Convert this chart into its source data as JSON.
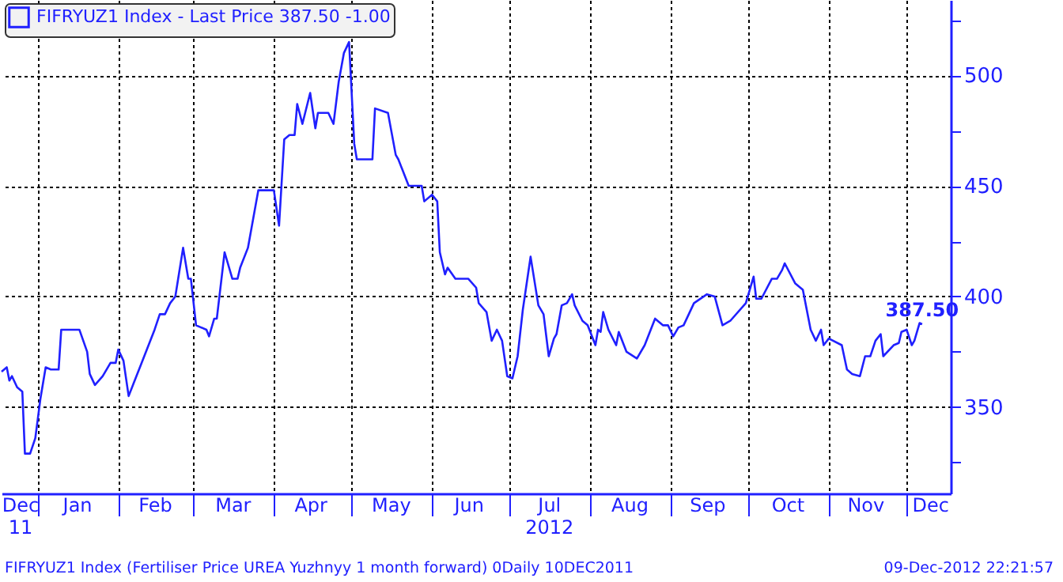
{
  "chart_data": {
    "type": "line",
    "legend": "top left",
    "grid": true,
    "marker": "none",
    "line_style": "solid",
    "x": [
      "2011-12-18",
      "2011-12-20",
      "2011-12-21",
      "2011-12-22",
      "2011-12-24",
      "2011-12-26",
      "2011-12-27",
      "2011-12-29",
      "2011-12-31",
      "2012-01-02",
      "2012-01-04",
      "2012-01-06",
      "2012-01-09",
      "2012-01-10",
      "2012-01-17",
      "2012-01-20",
      "2012-01-21",
      "2012-01-23",
      "2012-01-26",
      "2012-01-29",
      "2012-01-31",
      "2012-02-01",
      "2012-02-03",
      "2012-02-05",
      "2012-02-07",
      "2012-02-10",
      "2012-02-15",
      "2012-02-17",
      "2012-02-19",
      "2012-02-21",
      "2012-02-23",
      "2012-02-26",
      "2012-02-28",
      "2012-02-29",
      "2012-03-02",
      "2012-03-06",
      "2012-03-07",
      "2012-03-09",
      "2012-03-10",
      "2012-03-13",
      "2012-03-16",
      "2012-03-18",
      "2012-03-19",
      "2012-03-22",
      "2012-03-26",
      "2012-03-28",
      "2012-04-01",
      "2012-04-03",
      "2012-04-05",
      "2012-04-07",
      "2012-04-09",
      "2012-04-10",
      "2012-04-12",
      "2012-04-15",
      "2012-04-17",
      "2012-04-18",
      "2012-04-22",
      "2012-04-24",
      "2012-04-26",
      "2012-04-28",
      "2012-04-30",
      "2012-05-02",
      "2012-05-03",
      "2012-05-09",
      "2012-05-10",
      "2012-05-15",
      "2012-05-18",
      "2012-05-19",
      "2012-05-23",
      "2012-05-28",
      "2012-05-29",
      "2012-06-01",
      "2012-06-03",
      "2012-06-04",
      "2012-06-06",
      "2012-06-07",
      "2012-06-10",
      "2012-06-15",
      "2012-06-18",
      "2012-06-19",
      "2012-06-22",
      "2012-06-24",
      "2012-06-26",
      "2012-06-28",
      "2012-06-30",
      "2012-07-02",
      "2012-07-04",
      "2012-07-06",
      "2012-07-08",
      "2012-07-09",
      "2012-07-12",
      "2012-07-14",
      "2012-07-16",
      "2012-07-18",
      "2012-07-19",
      "2012-07-21",
      "2012-07-23",
      "2012-07-25",
      "2012-07-26",
      "2012-07-29",
      "2012-07-31",
      "2012-08-03",
      "2012-08-04",
      "2012-08-05",
      "2012-08-06",
      "2012-08-08",
      "2012-08-11",
      "2012-08-12",
      "2012-08-15",
      "2012-08-19",
      "2012-08-22",
      "2012-08-26",
      "2012-08-29",
      "2012-08-31",
      "2012-09-02",
      "2012-09-04",
      "2012-09-06",
      "2012-09-10",
      "2012-09-15",
      "2012-09-18",
      "2012-09-21",
      "2012-09-24",
      "2012-09-30",
      "2012-10-03",
      "2012-10-04",
      "2012-10-06",
      "2012-10-10",
      "2012-10-12",
      "2012-10-14",
      "2012-10-15",
      "2012-10-19",
      "2012-10-22",
      "2012-10-25",
      "2012-10-27",
      "2012-10-29",
      "2012-10-30",
      "2012-11-01",
      "2012-11-06",
      "2012-11-08",
      "2012-11-10",
      "2012-11-13",
      "2012-11-15",
      "2012-11-17",
      "2012-11-19",
      "2012-11-21",
      "2012-11-22",
      "2012-11-26",
      "2012-11-28",
      "2012-11-29",
      "2012-12-01",
      "2012-12-03",
      "2012-12-04",
      "2012-12-06",
      "2012-12-07"
    ],
    "series": [
      {
        "name": "FIFRYUZ1 Index - Last Price 387.50 -1.00",
        "color": "#2020ff",
        "values": [
          366,
          368,
          362,
          364,
          359,
          357,
          329,
          329,
          336,
          354,
          368,
          367,
          367,
          385,
          385,
          375,
          365,
          360,
          364,
          370,
          370,
          376,
          371,
          355,
          361,
          370,
          385,
          392,
          392,
          397,
          400,
          422,
          408,
          408,
          387,
          385,
          382,
          390,
          390,
          420,
          408,
          408,
          413,
          422,
          448,
          448,
          448,
          432,
          471,
          473,
          473,
          487,
          478,
          492,
          476,
          483,
          483,
          478,
          497,
          510,
          515,
          469,
          462,
          462,
          485,
          483,
          464,
          462,
          450,
          450,
          443,
          446,
          443,
          420,
          410,
          413,
          408,
          408,
          404,
          397,
          393,
          380,
          385,
          380,
          364,
          363,
          373,
          394,
          410,
          418,
          396,
          392,
          373,
          381,
          383,
          396,
          397,
          401,
          396,
          389,
          387,
          378,
          385,
          384,
          393,
          385,
          378,
          384,
          375,
          372,
          378,
          390,
          387,
          387,
          382,
          386,
          387,
          397,
          401,
          400,
          387,
          389,
          397,
          409,
          399,
          399,
          408,
          408,
          412,
          415,
          406,
          403,
          385,
          380,
          385,
          378,
          381,
          378,
          367,
          365,
          364,
          373,
          373,
          380,
          383,
          373,
          378,
          379,
          384,
          385,
          378,
          380,
          388,
          387.5
        ],
        "value_labels": [
          null,
          null,
          null,
          null,
          null,
          null,
          null,
          null,
          null,
          null,
          null,
          null,
          null,
          null,
          null,
          null,
          null,
          null,
          null,
          null,
          null,
          null,
          null,
          null,
          null,
          null,
          null,
          null,
          null,
          null,
          null,
          null,
          null,
          null,
          null,
          null,
          null,
          null,
          null,
          null,
          null,
          null,
          null,
          null,
          null,
          null,
          null,
          null,
          null,
          null,
          null,
          null,
          null,
          null,
          null,
          null,
          null,
          null,
          null,
          null,
          null,
          null,
          null,
          null,
          null,
          null,
          null,
          null,
          null,
          null,
          null,
          null,
          null,
          null,
          null,
          null,
          null,
          null,
          null,
          null,
          null,
          null,
          null,
          null,
          null,
          null,
          null,
          null,
          null,
          null,
          null,
          null,
          null,
          null,
          null,
          null,
          null,
          null,
          null,
          null,
          null,
          null,
          null,
          null,
          null,
          null,
          null,
          null,
          null,
          null,
          null,
          null,
          null,
          null,
          null,
          null,
          null,
          null,
          null,
          null,
          null,
          null,
          null,
          null,
          null,
          null,
          null,
          null,
          null,
          null,
          null,
          null,
          null,
          null,
          null,
          null,
          null,
          null,
          null,
          null,
          null,
          null,
          null,
          null,
          null,
          null,
          null,
          null,
          null,
          null,
          null,
          null,
          null,
          "387.50"
        ]
      }
    ],
    "xlim": [
      "2011-12-18",
      "2012-12-18"
    ],
    "xticks": [
      {
        "value": "2011-12-25",
        "label": "Dec\n11"
      },
      {
        "value": "2012-01-01",
        "label": null
      },
      {
        "value": "2012-01-16",
        "label": "Jan"
      },
      {
        "value": "2012-02-01",
        "label": null
      },
      {
        "value": "2012-02-15",
        "label": "Feb"
      },
      {
        "value": "2012-03-01",
        "label": null
      },
      {
        "value": "2012-03-16",
        "label": "Mar"
      },
      {
        "value": "2012-04-01",
        "label": null
      },
      {
        "value": "2012-04-15",
        "label": "Apr"
      },
      {
        "value": "2012-05-01",
        "label": null
      },
      {
        "value": "2012-05-16",
        "label": "May"
      },
      {
        "value": "2012-06-01",
        "label": null
      },
      {
        "value": "2012-06-15",
        "label": "Jun"
      },
      {
        "value": "2012-07-01",
        "label": null
      },
      {
        "value": "2012-07-16",
        "label": "Jul\n2012"
      },
      {
        "value": "2012-08-01",
        "label": null
      },
      {
        "value": "2012-08-16",
        "label": "Aug"
      },
      {
        "value": "2012-09-01",
        "label": null
      },
      {
        "value": "2012-09-15",
        "label": "Sep"
      },
      {
        "value": "2012-10-01",
        "label": null
      },
      {
        "value": "2012-10-16",
        "label": "Oct"
      },
      {
        "value": "2012-11-01",
        "label": null
      },
      {
        "value": "2012-11-15",
        "label": "Nov"
      },
      {
        "value": "2012-12-01",
        "label": null
      },
      {
        "value": "2012-12-10",
        "label": "Dec"
      }
    ],
    "ylim": [
      311,
      534
    ],
    "yticks": [
      {
        "value": 325,
        "label": null
      },
      350,
      {
        "value": 375,
        "label": null
      },
      400,
      {
        "value": 425,
        "label": null
      },
      450,
      {
        "value": 475,
        "label": null
      },
      500,
      {
        "value": 525,
        "label": null
      }
    ],
    "annotations": [
      "FIFRYUZ1 Index (Fertiliser Price UREA Yuzhnyy 1 month forward) 0Daily 10DEC2011",
      "09-Dec-2012 22:21:57"
    ]
  }
}
